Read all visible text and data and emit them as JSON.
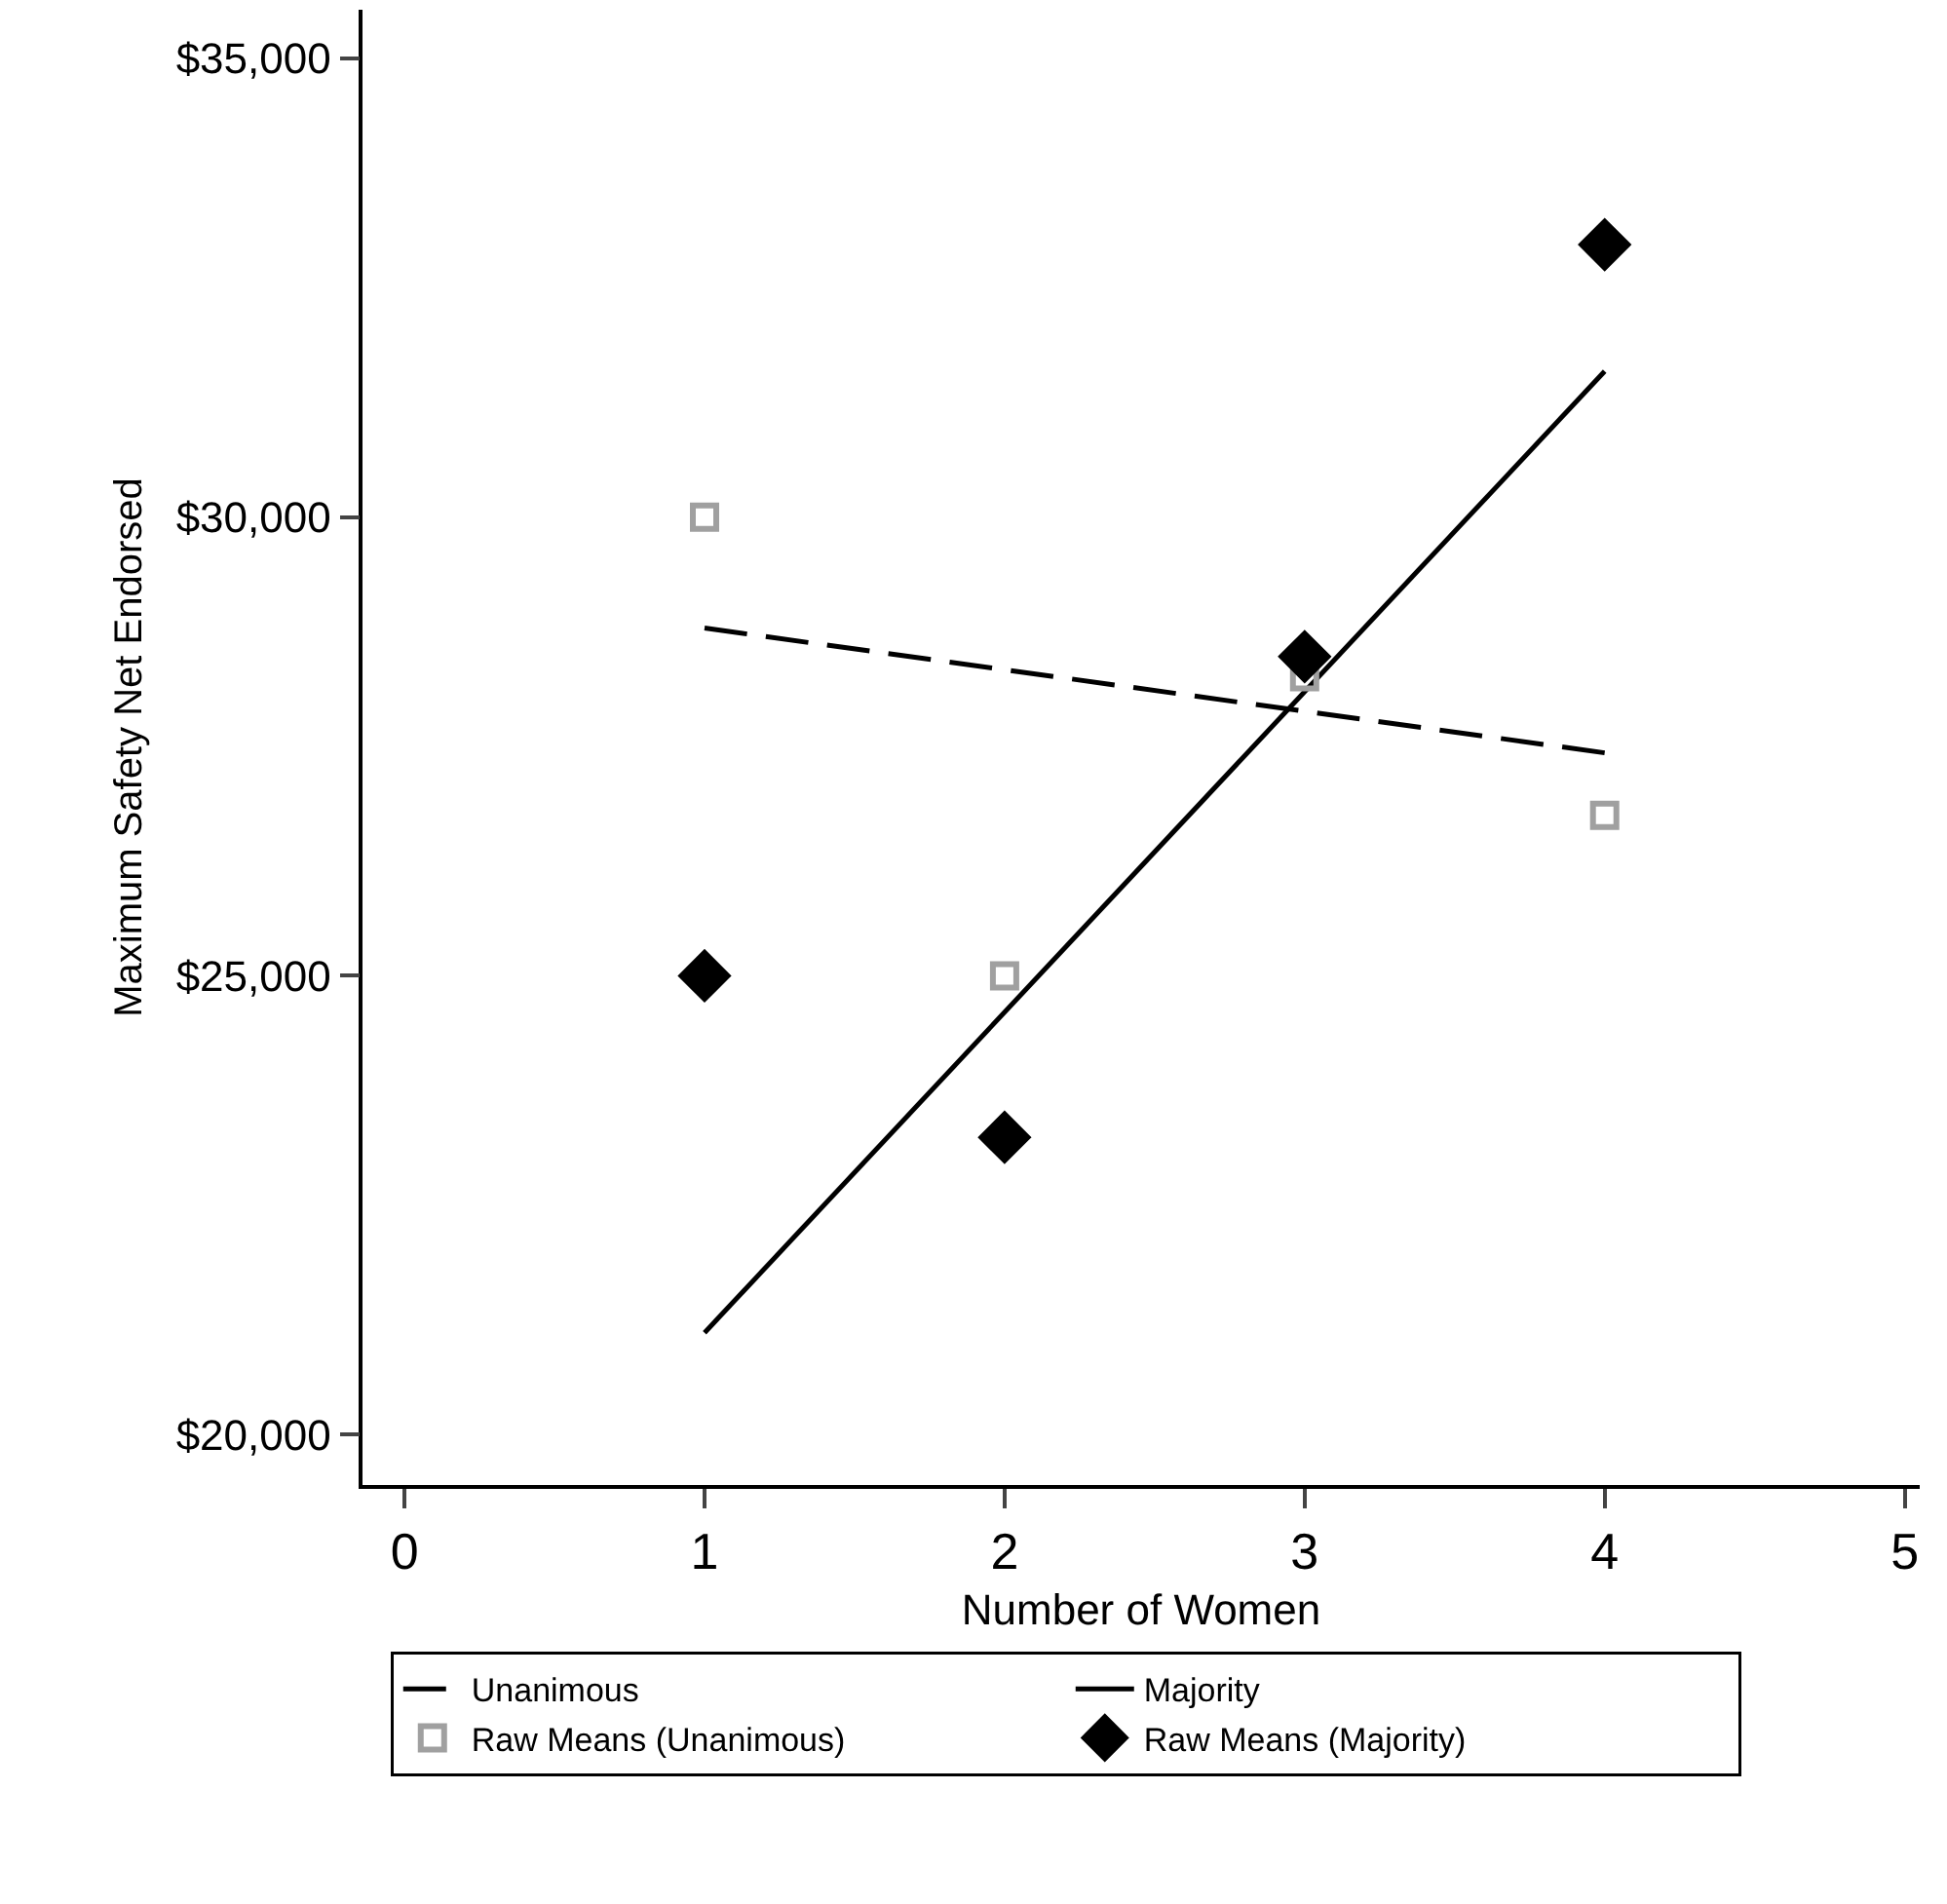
{
  "chart_data": {
    "type": "line",
    "xlabel": "Number of Women",
    "ylabel": "Maximum Safety Net Endorsed",
    "xlim": [
      -0.14,
      5.05
    ],
    "xticks": [
      0,
      1,
      2,
      3,
      4,
      5
    ],
    "ylim": [
      19450,
      35530
    ],
    "yticks": [
      {
        "value": 20000,
        "label": "$20,000"
      },
      {
        "value": 25000,
        "label": "$25,000"
      },
      {
        "value": 30000,
        "label": "$30,000"
      },
      {
        "value": 35000,
        "label": "$35,000"
      }
    ],
    "grid": false,
    "legend": "bottom",
    "series": [
      {
        "name": "Unanimous",
        "type": "line",
        "color": "#000000",
        "line_style": "dashed",
        "marker": "none",
        "x": [
          1,
          4
        ],
        "values": [
          28790,
          27430
        ]
      },
      {
        "name": "Majority",
        "type": "line",
        "color": "#000000",
        "line_style": "solid",
        "marker": "none",
        "x": [
          1,
          4
        ],
        "values": [
          21110,
          31590
        ]
      },
      {
        "name": "Raw Means (Unanimous)",
        "type": "scatter",
        "color": "#a0a0a0",
        "marker": "square",
        "x": [
          1,
          2,
          3,
          4
        ],
        "values": [
          30000,
          25000,
          28260,
          26750
        ]
      },
      {
        "name": "Raw Means (Majority)",
        "type": "scatter",
        "color": "#000000",
        "marker": "diamond",
        "x": [
          1,
          2,
          3,
          4
        ],
        "values": [
          25000,
          23240,
          28480,
          32970
        ]
      }
    ]
  }
}
